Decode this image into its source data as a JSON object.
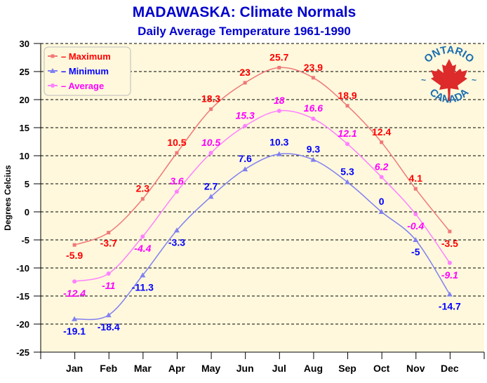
{
  "chart_data": {
    "type": "line",
    "title": "MADAWASKA: Climate Normals",
    "subtitle": "Daily Average Temperature 1961-1990",
    "ylabel": "Degrees Celcius",
    "xlabel": "",
    "ylim": [
      -25,
      30
    ],
    "yticks": [
      30,
      25,
      20,
      15,
      10,
      5,
      0,
      -5,
      -10,
      -15,
      -20,
      -25
    ],
    "grid": true,
    "legend_position": "top-left",
    "categories": [
      "Jan",
      "Feb",
      "Mar",
      "Apr",
      "May",
      "Jun",
      "Jul",
      "Aug",
      "Sep",
      "Oct",
      "Nov",
      "Dec"
    ],
    "series": [
      {
        "name": "Maximum",
        "legend_label": "– Maximum",
        "values": [
          -5.9,
          -3.7,
          2.3,
          10.5,
          18.3,
          23,
          25.7,
          23.9,
          18.9,
          12.4,
          4.1,
          -3.5
        ],
        "line_color": "#f07878",
        "label_color": "#ff0000",
        "marker": "square"
      },
      {
        "name": "Minimum",
        "legend_label": "– Minimum",
        "values": [
          -19.1,
          -18.4,
          -11.3,
          -3.3,
          2.7,
          7.6,
          10.3,
          9.3,
          5.3,
          0,
          -5,
          -14.7
        ],
        "line_color": "#8080f0",
        "label_color": "#0000ff",
        "marker": "triangle"
      },
      {
        "name": "Average",
        "legend_label": "– Average",
        "values": [
          -12.4,
          -11,
          -4.4,
          3.6,
          10.5,
          15.3,
          18,
          16.6,
          12.1,
          6.2,
          -0.4,
          -9.1
        ],
        "line_color": "#ff80ff",
        "label_color": "#ff00ff",
        "marker": "diamond"
      }
    ],
    "plot_background": "#fff8dc"
  },
  "logo": {
    "top_text": "ONTARIO",
    "bottom_text": "CANADA",
    "color": "#1a6eb0",
    "leaf_color": "#dd2a2a"
  }
}
